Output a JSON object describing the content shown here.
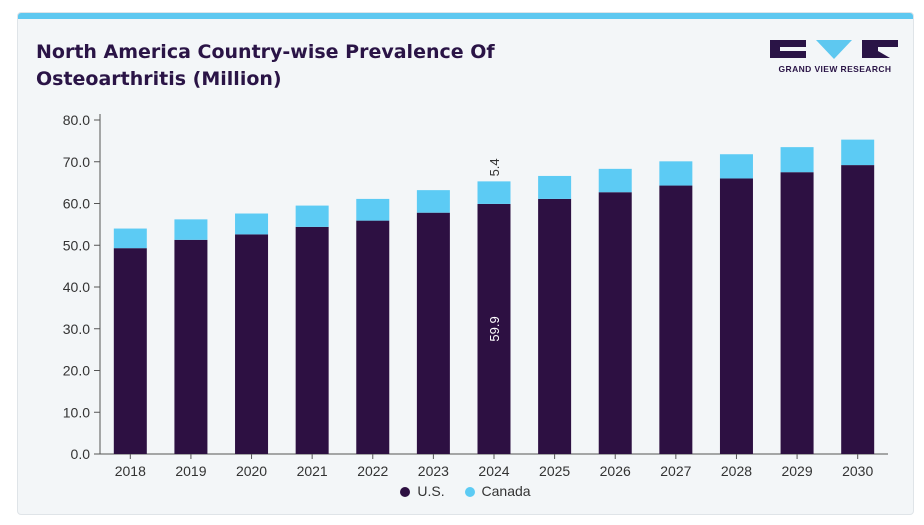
{
  "title_line1": "North America Country-wise Prevalence Of",
  "title_line2": "Osteoarthritis (Million)",
  "logo": {
    "text": "GRAND VIEW RESEARCH",
    "icon": "grand-view-research-logo",
    "color": "#2a1446"
  },
  "colors": {
    "us": "#2d1042",
    "canada": "#5ccbf4",
    "accent_bar": "#5ec8f0"
  },
  "chart_data": {
    "type": "bar",
    "stacked": true,
    "categories": [
      "2018",
      "2019",
      "2020",
      "2021",
      "2022",
      "2023",
      "2024",
      "2025",
      "2026",
      "2027",
      "2028",
      "2029",
      "2030"
    ],
    "series": [
      {
        "name": "U.S.",
        "values": [
          49.3,
          51.3,
          52.6,
          54.4,
          55.9,
          57.8,
          59.9,
          61.1,
          62.7,
          64.3,
          66.0,
          67.5,
          69.2
        ]
      },
      {
        "name": "Canada",
        "values": [
          4.7,
          4.9,
          5.0,
          5.1,
          5.2,
          5.4,
          5.4,
          5.5,
          5.6,
          5.8,
          5.8,
          6.0,
          6.1
        ]
      }
    ],
    "ylim": [
      0,
      80
    ],
    "yticks": [
      "0.0",
      "10.0",
      "20.0",
      "30.0",
      "40.0",
      "50.0",
      "60.0",
      "70.0",
      "80.0"
    ],
    "grid": false,
    "legend_position": "bottom-center",
    "data_labels": [
      {
        "category": "2024",
        "series": "U.S.",
        "text": "59.9"
      },
      {
        "category": "2024",
        "series": "Canada",
        "text": "5.4"
      }
    ]
  }
}
